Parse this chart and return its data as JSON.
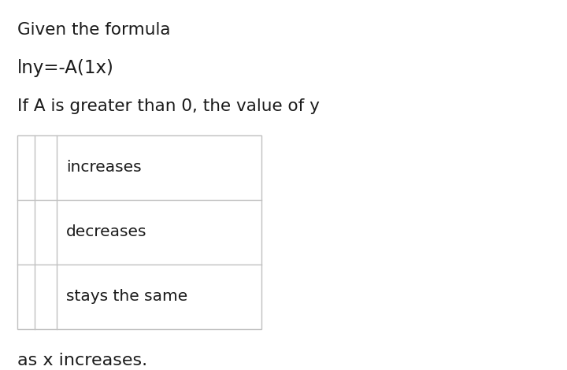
{
  "background_color": "#ffffff",
  "text_color": "#1a1a1a",
  "line1": "Given the formula",
  "line2": "lny=-A(1x)",
  "line3": "If A is greater than 0, the value of y",
  "footer": "as x increases.",
  "options": [
    "increases",
    "decreases",
    "stays the same"
  ],
  "grid_color": "#c0c0c0",
  "font_size_text": 15.5,
  "font_size_formula": 16.5,
  "font_size_option": 14.5,
  "font_size_footer": 16
}
